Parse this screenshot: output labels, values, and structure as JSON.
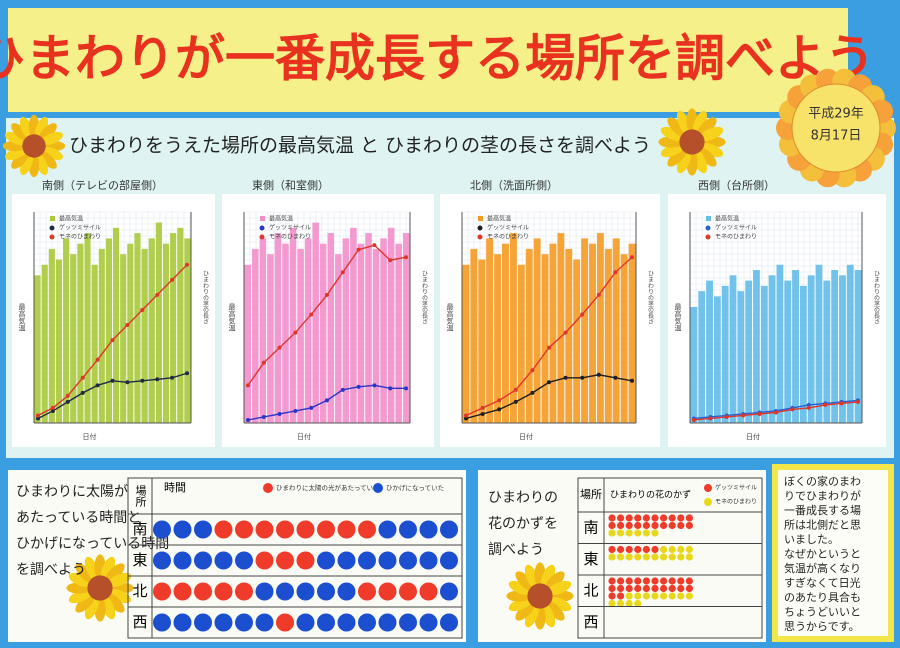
{
  "title": "ひまわりが一番成長する場所を調べよう",
  "date": [
    "平成29年",
    "8月17日"
  ],
  "subtitle": "ひまわりをうえた場所の最高気温 と ひまわりの茎の長さを調べよう",
  "charts": [
    {
      "title": "南側（テレビの部屋側）",
      "bar_name": "最高気温",
      "bar_color": "#a9c93a",
      "xlabel": "日付",
      "ylabel": "最高気温",
      "y2label": "ひまわりの茎の長さ",
      "ylim": [
        0,
        40
      ],
      "y2lim": [
        0,
        140
      ],
      "values": [
        28,
        30,
        33,
        31,
        35,
        32,
        34,
        36,
        30,
        33,
        35,
        37,
        32,
        34,
        36,
        33,
        35,
        38,
        34,
        36,
        37,
        35
      ],
      "series": [
        {
          "name": "ゲッツミサイル",
          "color": "#1f2a44",
          "values": [
            3,
            8,
            14,
            20,
            25,
            28,
            27,
            28,
            29,
            30,
            33
          ]
        },
        {
          "name": "モネのひまわり",
          "color": "#e0352b",
          "values": [
            5,
            10,
            18,
            30,
            42,
            55,
            65,
            75,
            85,
            95,
            105
          ]
        }
      ]
    },
    {
      "title": "東側（和室側）",
      "bar_name": "最高気温",
      "bar_color": "#f28fcb",
      "xlabel": "日付",
      "ylabel": "最高気温",
      "y2label": "ひまわりの茎の長さ",
      "ylim": [
        0,
        40
      ],
      "y2lim": [
        0,
        140
      ],
      "values": [
        30,
        33,
        35,
        32,
        36,
        34,
        37,
        33,
        35,
        38,
        34,
        36,
        32,
        35,
        37,
        34,
        36,
        33,
        35,
        37,
        34,
        36
      ],
      "series": [
        {
          "name": "ゲッツミサイル",
          "color": "#2b35c8",
          "values": [
            2,
            4,
            6,
            8,
            10,
            15,
            22,
            24,
            25,
            23,
            23
          ]
        },
        {
          "name": "モネのひまわり",
          "color": "#e0352b",
          "values": [
            25,
            40,
            50,
            60,
            72,
            85,
            100,
            115,
            118,
            108,
            110
          ]
        }
      ]
    },
    {
      "title": "北側（洗面所側）",
      "bar_name": "最高気温",
      "bar_color": "#f59a22",
      "xlabel": "日付",
      "ylabel": "最高気温",
      "y2label": "ひまわりの茎の長さ",
      "ylim": [
        0,
        40
      ],
      "y2lim": [
        0,
        140
      ],
      "values": [
        30,
        33,
        31,
        35,
        32,
        34,
        36,
        30,
        33,
        35,
        32,
        34,
        36,
        33,
        31,
        35,
        34,
        36,
        33,
        35,
        32,
        34
      ],
      "series": [
        {
          "name": "ゲッツミサイル",
          "color": "#1f1f1f",
          "values": [
            3,
            6,
            9,
            14,
            20,
            27,
            30,
            30,
            32,
            30,
            28
          ]
        },
        {
          "name": "モネのひまわり",
          "color": "#e0352b",
          "values": [
            5,
            10,
            15,
            22,
            35,
            50,
            60,
            72,
            85,
            100,
            110
          ]
        }
      ]
    },
    {
      "title": "西側（台所側）",
      "bar_name": "最高気温",
      "bar_color": "#62bde9",
      "xlabel": "日付",
      "ylabel": "最高気温",
      "y2label": "ひまわりの茎の長さ",
      "ylim": [
        0,
        40
      ],
      "y2lim": [
        0,
        140
      ],
      "values": [
        22,
        25,
        27,
        24,
        26,
        28,
        25,
        27,
        29,
        26,
        28,
        30,
        27,
        29,
        26,
        28,
        30,
        27,
        29,
        28,
        30,
        29
      ],
      "series": [
        {
          "name": "ゲッツミサイル",
          "color": "#2b5fd0",
          "values": [
            3,
            4,
            5,
            6,
            7,
            8,
            10,
            12,
            13,
            14,
            15
          ]
        },
        {
          "name": "モネのひまわり",
          "color": "#e0352b",
          "values": [
            2,
            3,
            4,
            5,
            6,
            7,
            9,
            10,
            12,
            13,
            14
          ]
        }
      ]
    }
  ],
  "sun": {
    "title_lines": [
      "ひまわりに太陽が",
      "あたっている時間と",
      "ひかげになっている時間",
      "を調べよう"
    ],
    "place_header": "場所",
    "time_header": "時間",
    "legend": [
      {
        "label": "ひまわりに太陽の光があたっていた",
        "color": "#f03a2a"
      },
      {
        "label": "ひかげになっていた",
        "color": "#1c4fd0"
      }
    ],
    "rows": [
      {
        "place": "南",
        "sun": [
          0,
          0,
          0,
          1,
          1,
          1,
          1,
          1,
          1,
          1,
          1,
          0,
          0,
          0,
          0
        ]
      },
      {
        "place": "東",
        "sun": [
          0,
          0,
          0,
          0,
          0,
          1,
          1,
          1,
          0,
          0,
          0,
          0,
          0,
          0,
          0
        ]
      },
      {
        "place": "北",
        "sun": [
          1,
          1,
          1,
          1,
          1,
          0,
          0,
          0,
          0,
          0,
          1,
          1,
          1,
          1,
          0
        ]
      },
      {
        "place": "西",
        "sun": [
          0,
          0,
          0,
          0,
          0,
          0,
          1,
          0,
          0,
          0,
          0,
          0,
          0,
          0,
          0
        ]
      }
    ]
  },
  "flowers": {
    "title_lines": [
      "ひまわりの",
      "花のかずを",
      "調べよう"
    ],
    "place_header": "場所",
    "header": "ひまわりの花のかず",
    "legend": [
      {
        "label": "ゲッツミサイル",
        "color": "#f03a2a"
      },
      {
        "label": "モネのひまわり",
        "color": "#e8d81c"
      }
    ],
    "rows": [
      {
        "place": "南",
        "counts": [
          20,
          6
        ]
      },
      {
        "place": "東",
        "counts": [
          6,
          14
        ]
      },
      {
        "place": "北",
        "counts": [
          22,
          12
        ]
      },
      {
        "place": "西",
        "counts": [
          0,
          0
        ]
      }
    ]
  },
  "note_lines": [
    "ぼくの家のまわ",
    "りでひまわりが",
    "一番成長する場",
    "所は北側だと思",
    "いました。",
    "なぜかというと",
    "気温が高くなり",
    "すぎなくて日光",
    "のあたり具合も",
    "ちょうどいいと",
    "思うからです。"
  ]
}
